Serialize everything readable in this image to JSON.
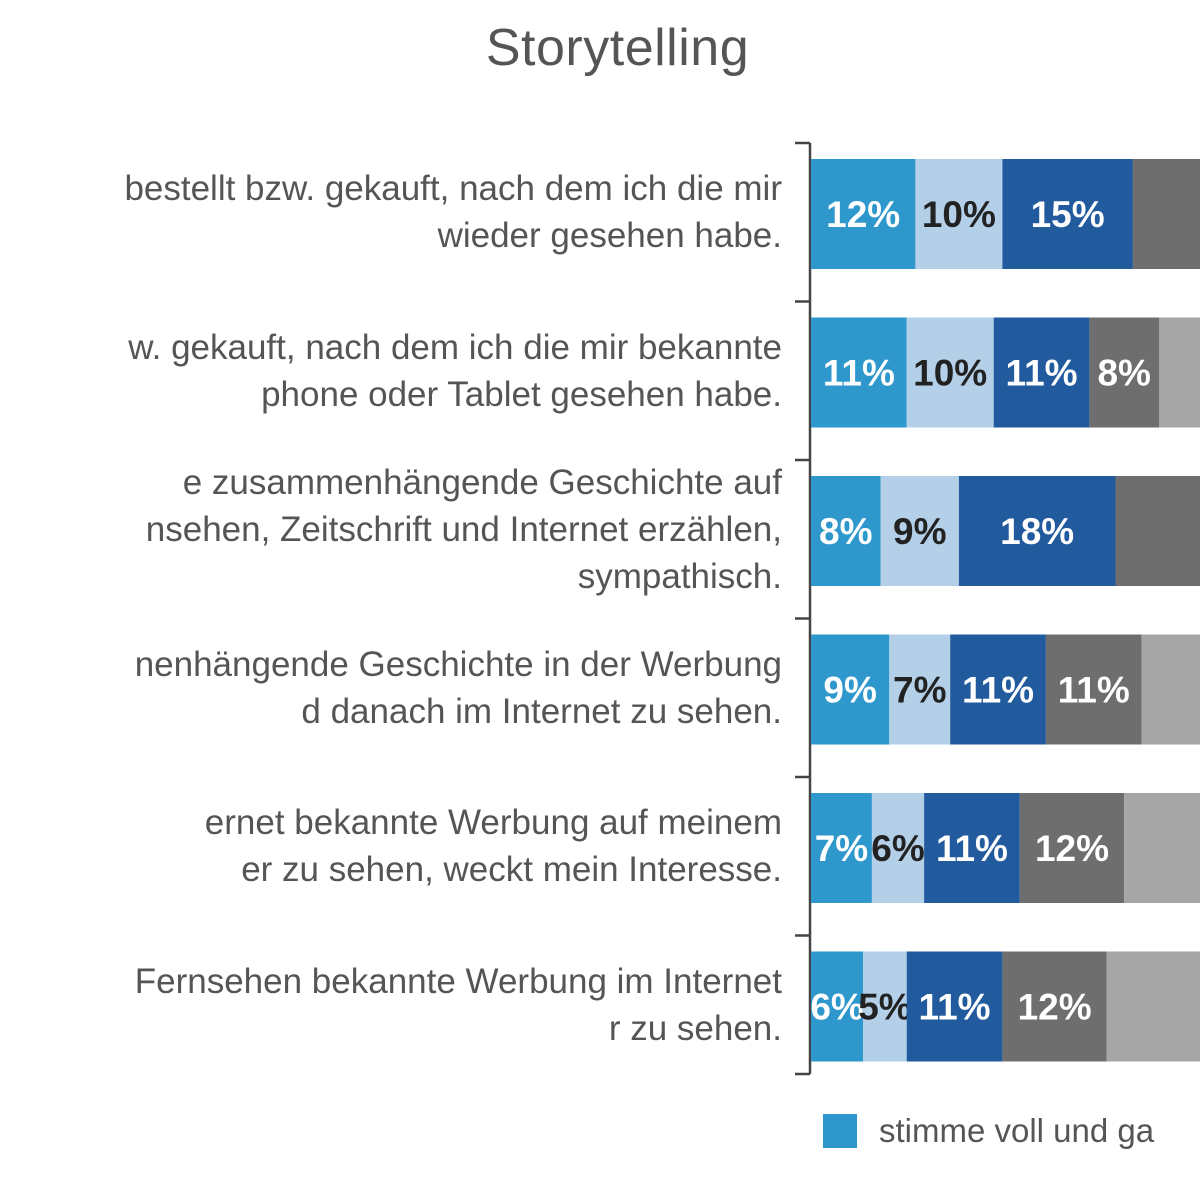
{
  "chart_data": {
    "type": "bar",
    "orientation": "horizontal",
    "stacked": true,
    "title": "Storytelling",
    "categories": [
      [
        "bestellt bzw. gekauft, nach dem ich die mir",
        "wieder gesehen habe."
      ],
      [
        "w. gekauft, nach dem ich die mir bekannte",
        "phone oder Tablet gesehen habe."
      ],
      [
        "e zusammenhängende Geschichte auf",
        "nsehen, Zeitschrift und Internet erzählen,",
        "sympathisch."
      ],
      [
        "nenhängende Geschichte in der Werbung",
        "d danach im Internet zu sehen."
      ],
      [
        "ernet bekannte Werbung auf meinem",
        "er zu sehen, weckt mein Interesse."
      ],
      [
        "Fernsehen bekannte Werbung im Internet",
        "r zu sehen."
      ]
    ],
    "series": [
      {
        "name": "stimme voll und ga",
        "color": "#2e97cb",
        "text_color": "#ffffff",
        "values": [
          12,
          11,
          8,
          9,
          7,
          6
        ],
        "labels": [
          "12%",
          "11%",
          "8%",
          "9%",
          "7%",
          "6%"
        ]
      },
      {
        "color": "#b4cfe8",
        "text_color": "#222222",
        "values": [
          10,
          10,
          9,
          7,
          6,
          5
        ],
        "labels": [
          "10%",
          "10%",
          "9%",
          "7%",
          "6%",
          "5%"
        ]
      },
      {
        "color": "#225a9e",
        "text_color": "#ffffff",
        "values": [
          15,
          11,
          18,
          11,
          11,
          11
        ],
        "labels": [
          "15%",
          "11%",
          "18%",
          "11%",
          "11%",
          "11%"
        ]
      },
      {
        "color": "#6e6e6e",
        "text_color": "#ffffff",
        "values": [
          null,
          8,
          null,
          11,
          12,
          12
        ],
        "labels": [
          "",
          "8%",
          "",
          "11%",
          "12%",
          "12%"
        ]
      },
      {
        "color": "#a6a6a6",
        "text_color": "#ffffff",
        "values": [
          null,
          null,
          null,
          null,
          null,
          null
        ],
        "labels": [
          "",
          "",
          "",
          "",
          "",
          ""
        ]
      }
    ]
  }
}
